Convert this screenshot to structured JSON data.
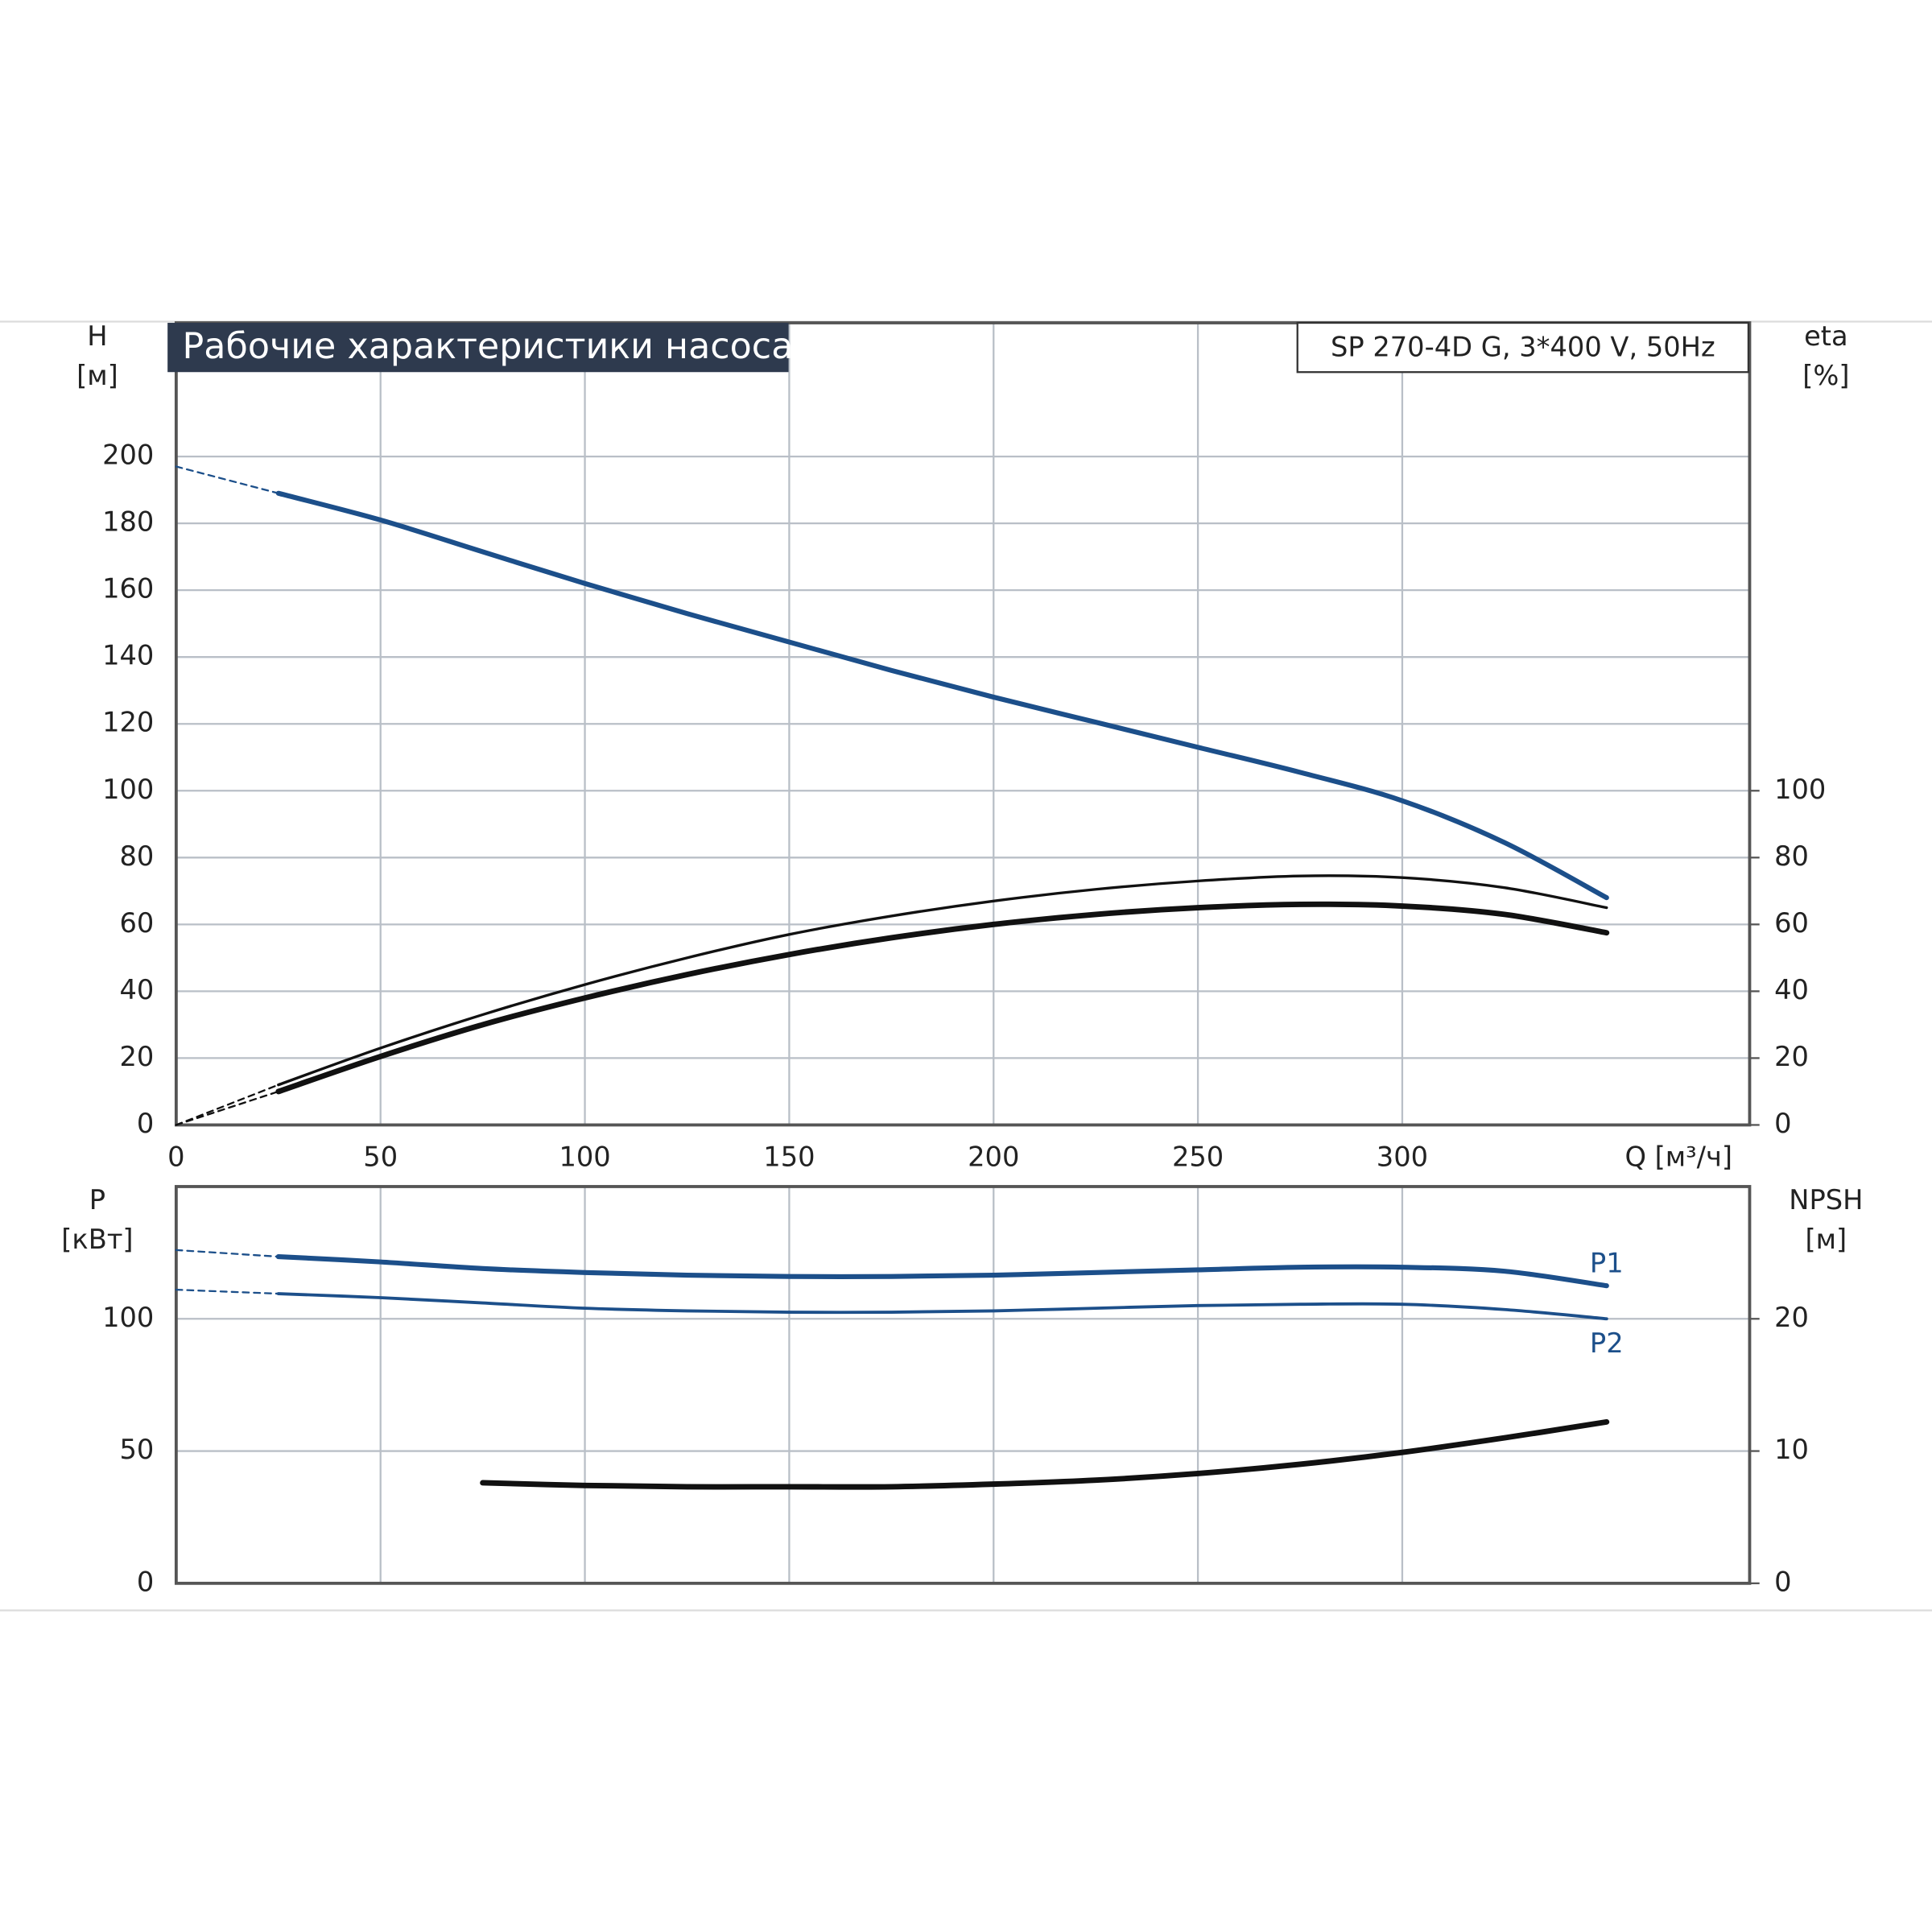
{
  "chart_data": [
    {
      "type": "line",
      "title": "Рабочие характеристики насоса",
      "subtitle": "SP 270-4D G, 3*400 V, 50Hz",
      "ylabel": [
        "H",
        "[м]"
      ],
      "y2label": [
        "eta",
        "[%]"
      ],
      "xlabel": "Q [м³/ч]",
      "xlim": [
        0,
        385
      ],
      "xticks": [
        0,
        50,
        100,
        150,
        200,
        250,
        300
      ],
      "ylim": [
        0,
        240
      ],
      "yticks": [
        0,
        20,
        40,
        60,
        80,
        100,
        120,
        140,
        160,
        180,
        200
      ],
      "y2lim": [
        0,
        240
      ],
      "y2ticks": [
        0,
        20,
        40,
        60,
        80,
        100
      ],
      "grid": true,
      "x": [
        25,
        50,
        75,
        100,
        125,
        150,
        175,
        200,
        225,
        250,
        275,
        300,
        325,
        350
      ],
      "series": [
        {
          "color": "#1c4f8a",
          "width": 4,
          "values": [
            189,
            181,
            171.5,
            162,
            153,
            144.5,
            136,
            128,
            120.5,
            113,
            105.5,
            97,
            84.5,
            68
          ]
        },
        {
          "color": "#1c4f8a",
          "width": 1.5,
          "dash": true,
          "x": [
            0,
            25
          ],
          "values": [
            197,
            189
          ]
        },
        {
          "color": "#111111",
          "width": 2.2,
          "axis": "y2",
          "values": [
            12,
            23,
            33,
            42,
            50,
            57,
            62.5,
            67,
            70.5,
            73,
            74.5,
            74,
            71,
            65
          ]
        },
        {
          "color": "#111111",
          "width": 4.5,
          "axis": "y2",
          "values": [
            10,
            20.5,
            30,
            38,
            45,
            51,
            56,
            60,
            63,
            65,
            66,
            65.5,
            63,
            57.5
          ]
        },
        {
          "color": "#111111",
          "width": 1.5,
          "dash": true,
          "axis": "y2",
          "x": [
            0,
            25
          ],
          "values": [
            0,
            12
          ]
        },
        {
          "color": "#111111",
          "width": 1.5,
          "dash": true,
          "axis": "y2",
          "x": [
            0,
            25
          ],
          "values": [
            0,
            10
          ]
        }
      ]
    },
    {
      "type": "line",
      "ylabel": [
        "P",
        "[кВт]"
      ],
      "y2label": [
        "NPSH",
        "[м]"
      ],
      "xlim": [
        0,
        385
      ],
      "ylim": [
        0,
        150
      ],
      "yticks": [
        0,
        50,
        100
      ],
      "y2lim": [
        0,
        30
      ],
      "y2ticks": [
        0,
        10,
        20
      ],
      "grid": true,
      "x": [
        25,
        50,
        75,
        100,
        125,
        150,
        175,
        200,
        225,
        250,
        275,
        300,
        325,
        350
      ],
      "series": [
        {
          "name": "P1",
          "label_position": "above",
          "color": "#1c4f8a",
          "width": 4,
          "values": [
            123.5,
            121.5,
            119,
            117.5,
            116.5,
            116,
            116,
            116.5,
            117.5,
            118.5,
            119.5,
            119.5,
            118,
            112.5
          ]
        },
        {
          "name": "P2",
          "label_position": "below",
          "color": "#1c4f8a",
          "width": 2.5,
          "values": [
            109.5,
            108,
            106,
            104,
            103,
            102.5,
            102.5,
            103,
            104,
            105,
            105.5,
            105.5,
            103.5,
            100
          ]
        },
        {
          "color": "#1c4f8a",
          "width": 1.5,
          "dash": true,
          "x": [
            0,
            25
          ],
          "values": [
            126,
            123.5
          ]
        },
        {
          "color": "#1c4f8a",
          "width": 1.5,
          "dash": true,
          "x": [
            0,
            25
          ],
          "values": [
            111,
            109.5
          ]
        },
        {
          "color": "#111111",
          "width": 4.5,
          "axis": "y2",
          "values": [
            null,
            null,
            7.6,
            7.4,
            7.3,
            7.3,
            7.3,
            7.5,
            7.8,
            8.3,
            9.0,
            9.9,
            11.0,
            12.2
          ]
        }
      ]
    }
  ]
}
